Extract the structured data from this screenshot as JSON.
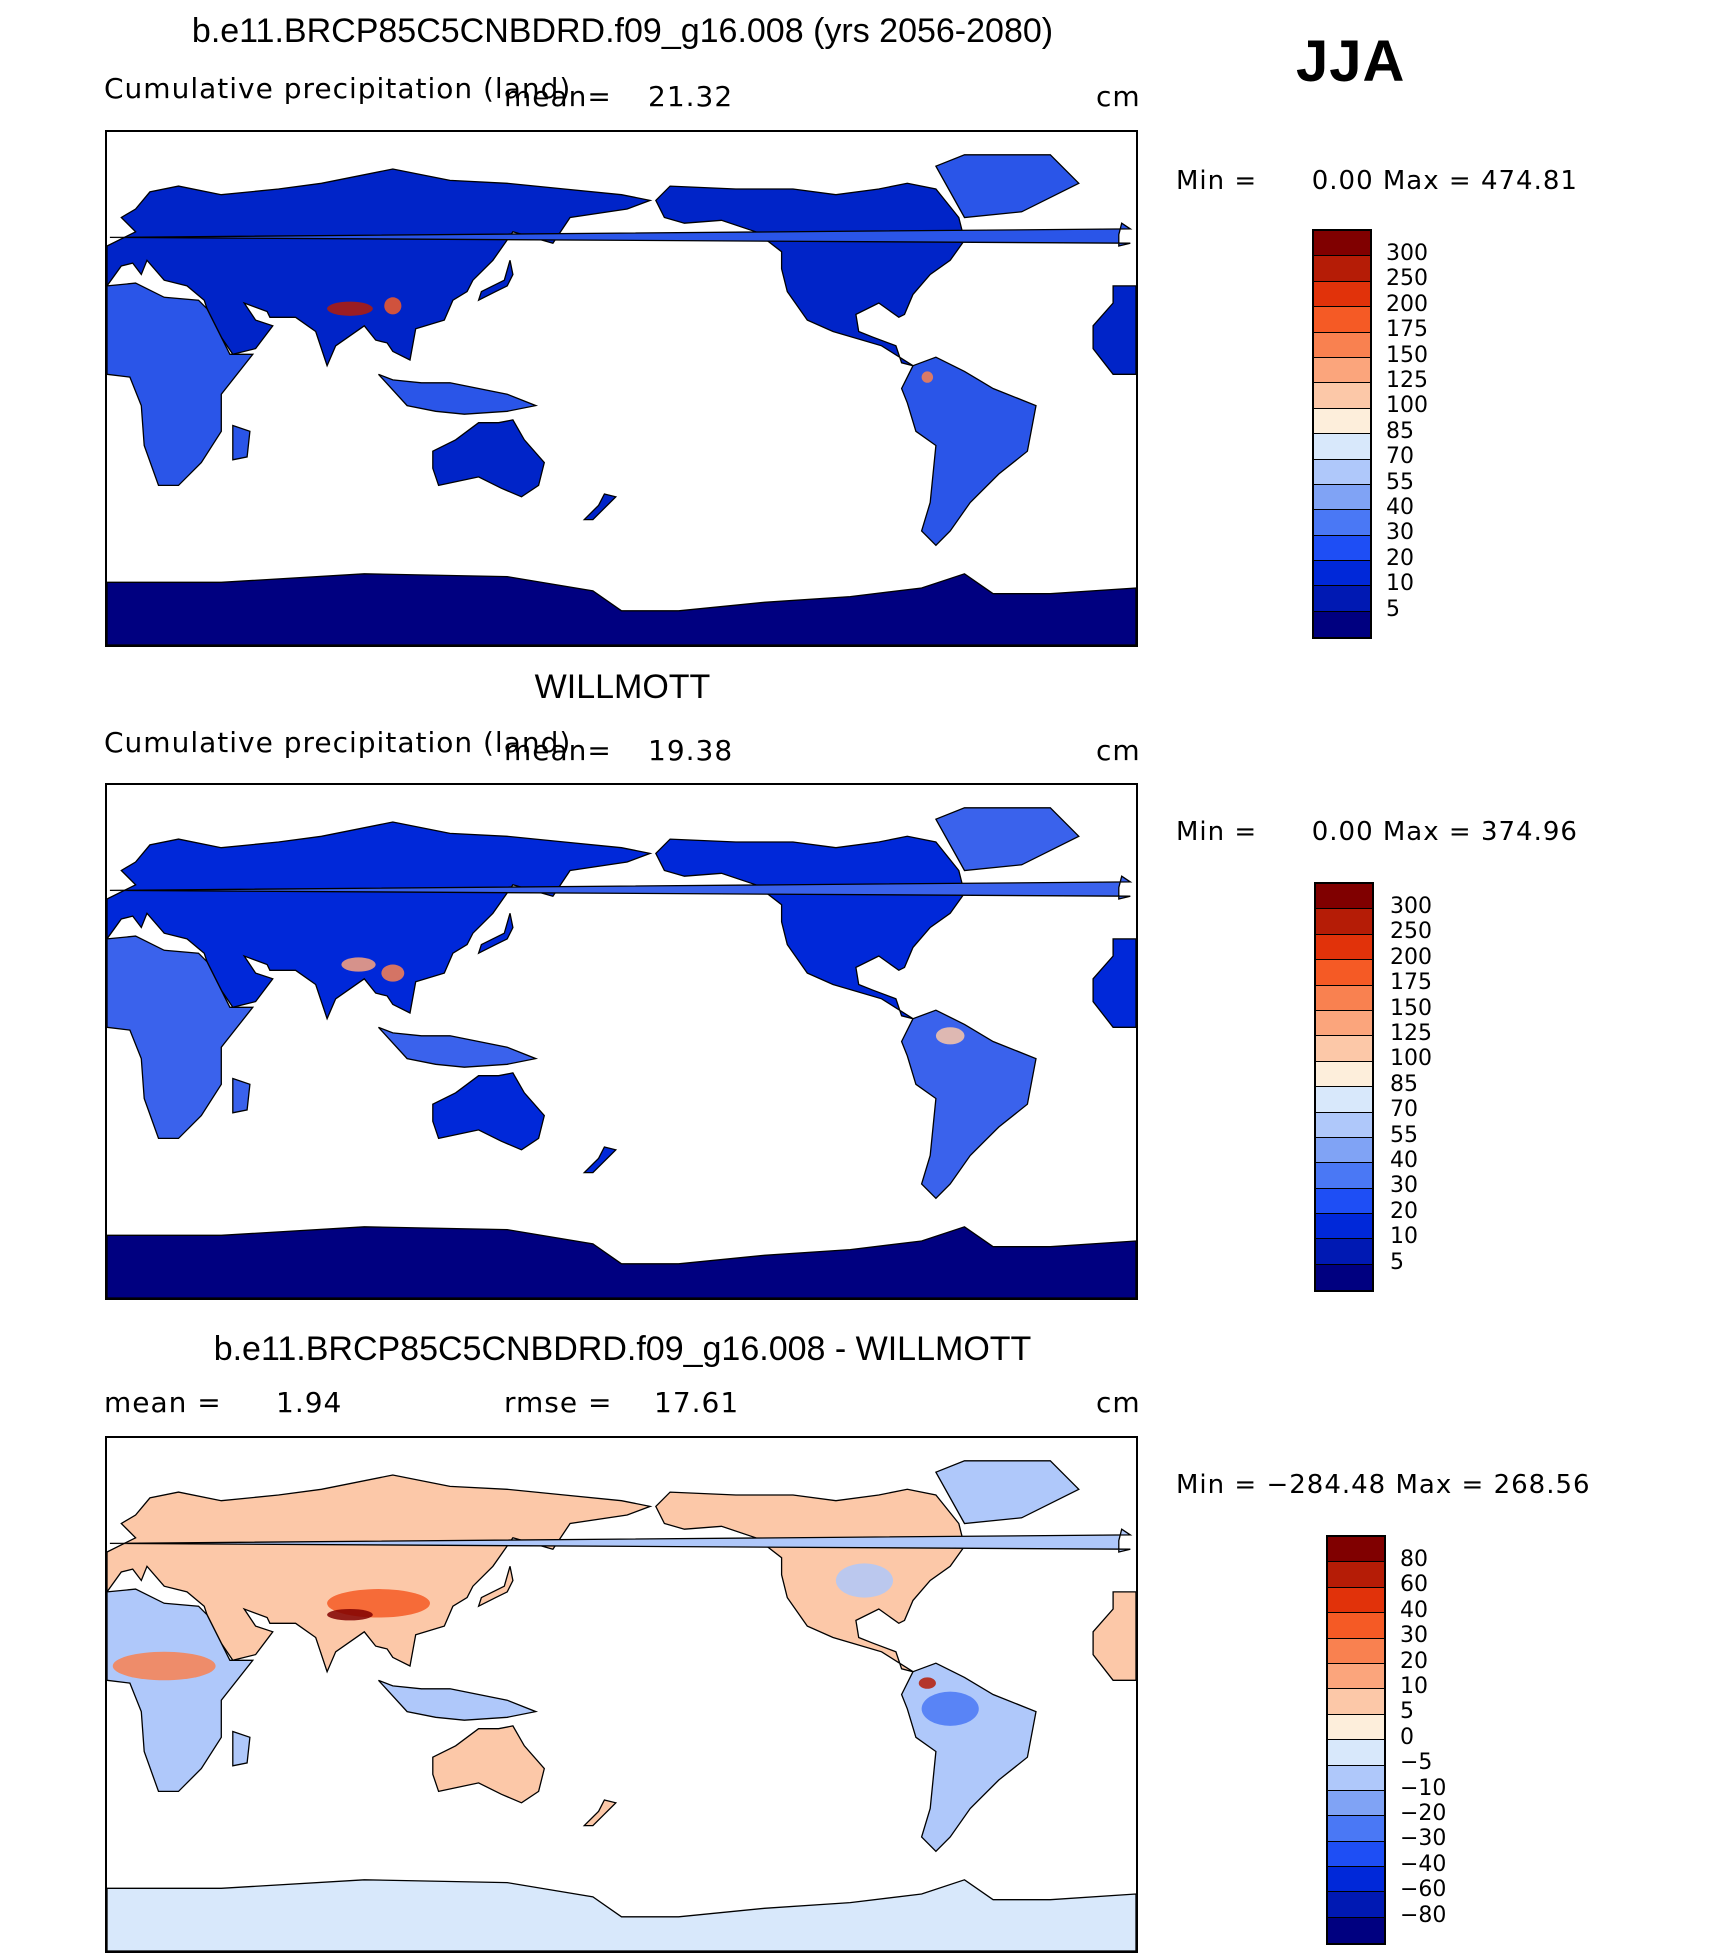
{
  "season": "JJA",
  "colorbar_colors": [
    "#000080",
    "#0019b3",
    "#0028d9",
    "#1e4ef5",
    "#4a78f5",
    "#80a3f5",
    "#afc8fa",
    "#d8e8fb",
    "#fdeedb",
    "#fcc8a8",
    "#fba57c",
    "#f98150",
    "#f55a25",
    "#e1320a",
    "#b51c06",
    "#800000"
  ],
  "panels": [
    {
      "title": "b.e11.BRCP85C5CNBDRD.f09_g16.008 (yrs 2056-2080)",
      "subtitle_left": "Cumulative precipitation (land)",
      "mean_label": "mean=",
      "mean_value": "21.32",
      "units": "cm",
      "min_label": "Min  =",
      "min_value": "0.00",
      "max_label": "Max  =",
      "max_value": "474.81",
      "colorbar_ticks": [
        "300",
        "250",
        "200",
        "175",
        "150",
        "125",
        "100",
        "85",
        "70",
        "55",
        "40",
        "30",
        "20",
        "10",
        "5"
      ],
      "map_colors": {
        "ocean": "#ffffff",
        "antarctica": "#000080",
        "land_primary": "#0024c8",
        "land_secondary": "#2a55e8"
      }
    },
    {
      "title": "WILLMOTT",
      "subtitle_left": "Cumulative precipitation (land)",
      "mean_label": "mean=",
      "mean_value": "19.38",
      "units": "cm",
      "min_label": "Min  =",
      "min_value": "0.00",
      "max_label": "Max  =",
      "max_value": "374.96",
      "colorbar_ticks": [
        "300",
        "250",
        "200",
        "175",
        "150",
        "125",
        "100",
        "85",
        "70",
        "55",
        "40",
        "30",
        "20",
        "10",
        "5"
      ],
      "map_colors": {
        "ocean": "#ffffff",
        "antarctica": "#000080",
        "land_primary": "#0028d9",
        "land_secondary": "#3a62ec"
      }
    },
    {
      "title": "b.e11.BRCP85C5CNBDRD.f09_g16.008 - WILLMOTT",
      "subtitle_left": "mean =",
      "mean_value": "1.94",
      "rmse_label": "rmse =",
      "rmse_value": "17.61",
      "units": "cm",
      "min_label": "Min  =",
      "min_value": "−284.48",
      "max_label": "Max  =",
      "max_value": "268.56",
      "colorbar_ticks": [
        "80",
        "60",
        "40",
        "30",
        "20",
        "10",
        "5",
        "0",
        "−5",
        "−10",
        "−20",
        "−30",
        "−40",
        "−60",
        "−80"
      ],
      "map_colors": {
        "ocean": "#ffffff",
        "antarctica": "#d8e8fb",
        "land_primary": "#fcc8a8",
        "land_secondary": "#afc8fa"
      }
    }
  ],
  "chart_data": [
    {
      "type": "heatmap",
      "title": "b.e11.BRCP85C5CNBDRD.f09_g16.008 (yrs 2056-2080)",
      "variable": "Cumulative precipitation (land)",
      "units": "cm",
      "mean": 21.32,
      "min": 0.0,
      "max": 474.81,
      "levels": [
        5,
        10,
        20,
        30,
        40,
        55,
        70,
        85,
        100,
        125,
        150,
        175,
        200,
        250,
        300
      ]
    },
    {
      "type": "heatmap",
      "title": "WILLMOTT",
      "variable": "Cumulative precipitation (land)",
      "units": "cm",
      "mean": 19.38,
      "min": 0.0,
      "max": 374.96,
      "levels": [
        5,
        10,
        20,
        30,
        40,
        55,
        70,
        85,
        100,
        125,
        150,
        175,
        200,
        250,
        300
      ]
    },
    {
      "type": "heatmap",
      "title": "b.e11.BRCP85C5CNBDRD.f09_g16.008 - WILLMOTT",
      "units": "cm",
      "mean": 1.94,
      "rmse": 17.61,
      "min": -284.48,
      "max": 268.56,
      "levels": [
        -80,
        -60,
        -40,
        -30,
        -20,
        -10,
        -5,
        0,
        5,
        10,
        20,
        30,
        40,
        60,
        80
      ]
    }
  ]
}
